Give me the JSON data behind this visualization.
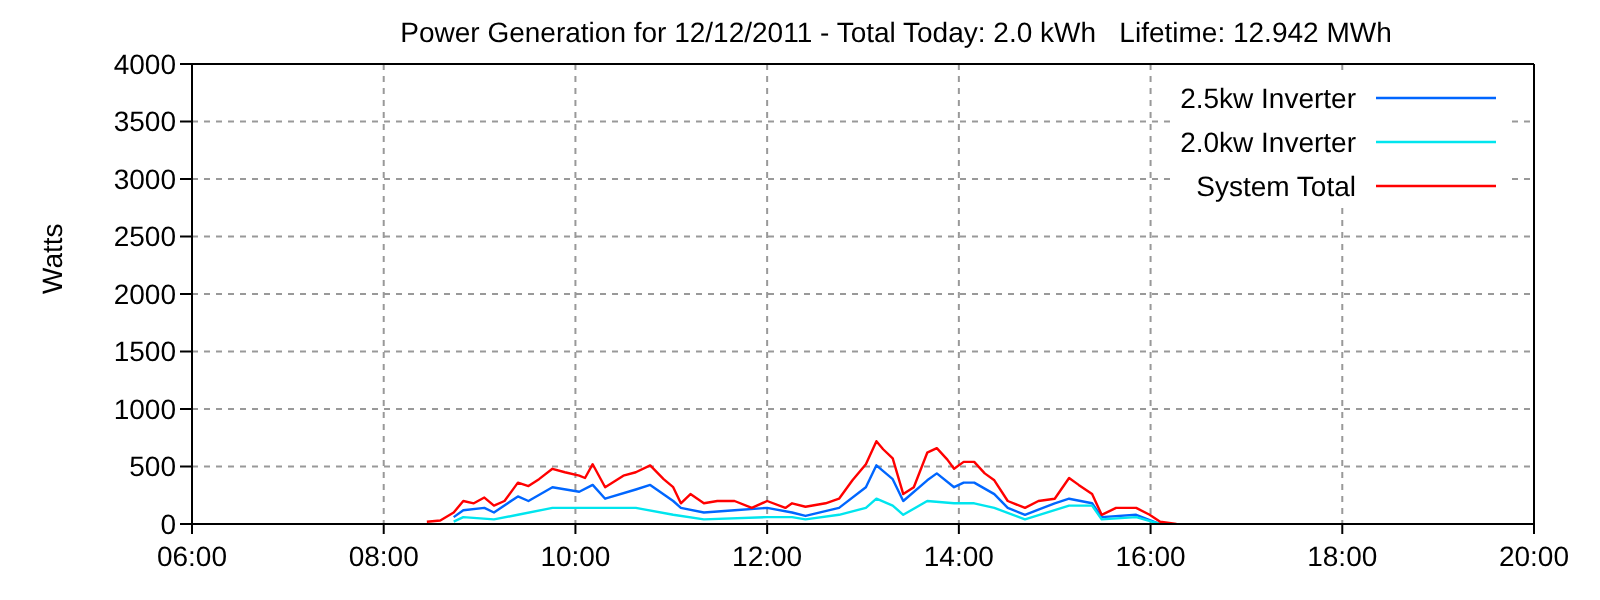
{
  "chart_data": {
    "type": "line",
    "title": "Power Generation for 12/12/2011 - Total Today: 2.0 kWh   Lifetime: 12.942 MWh",
    "ylabel": "Watts",
    "xlim": [
      6,
      20
    ],
    "xticks": [
      {
        "value": 6,
        "label": "06:00"
      },
      {
        "value": 8,
        "label": "08:00"
      },
      {
        "value": 10,
        "label": "10:00"
      },
      {
        "value": 12,
        "label": "12:00"
      },
      {
        "value": 14,
        "label": "14:00"
      },
      {
        "value": 16,
        "label": "16:00"
      },
      {
        "value": 18,
        "label": "18:00"
      },
      {
        "value": 20,
        "label": "20:00"
      }
    ],
    "ylim": [
      0,
      4000
    ],
    "yticks": [
      0,
      500,
      1000,
      1500,
      2000,
      2500,
      3000,
      3500,
      4000
    ],
    "grid": true,
    "legend": "top right",
    "marker": "none",
    "line_style": "solid",
    "series": [
      {
        "name": "2.5kw Inverter",
        "color": "#0066ff",
        "x": [
          8.73,
          8.83,
          9.05,
          9.15,
          9.4,
          9.51,
          9.76,
          10.04,
          10.18,
          10.31,
          10.63,
          10.78,
          11.02,
          11.1,
          11.34,
          11.66,
          12.0,
          12.26,
          12.4,
          12.75,
          13.03,
          13.14,
          13.31,
          13.42,
          13.67,
          13.77,
          13.95,
          14.05,
          14.16,
          14.37,
          14.51,
          14.69,
          15.0,
          15.15,
          15.39,
          15.49,
          15.85,
          16.1
        ],
        "values": [
          60,
          120,
          140,
          100,
          240,
          200,
          320,
          280,
          340,
          220,
          300,
          340,
          200,
          140,
          100,
          120,
          140,
          100,
          70,
          140,
          320,
          510,
          390,
          200,
          380,
          440,
          320,
          360,
          360,
          260,
          140,
          80,
          180,
          220,
          180,
          60,
          80,
          0
        ]
      },
      {
        "name": "2.0kw Inverter",
        "color": "#00e5ee",
        "x": [
          8.73,
          8.83,
          9.15,
          9.4,
          9.76,
          10.18,
          10.63,
          11.02,
          11.34,
          12.0,
          12.26,
          12.4,
          12.75,
          13.03,
          13.14,
          13.31,
          13.42,
          13.67,
          13.95,
          14.16,
          14.37,
          14.69,
          15.15,
          15.39,
          15.49,
          15.85,
          16.1
        ],
        "values": [
          20,
          60,
          40,
          80,
          140,
          140,
          140,
          80,
          40,
          60,
          60,
          40,
          80,
          140,
          220,
          160,
          80,
          200,
          180,
          180,
          140,
          40,
          160,
          160,
          40,
          60,
          0
        ]
      },
      {
        "name": "System Total",
        "color": "#ff0000",
        "x": [
          8.45,
          8.59,
          8.73,
          8.83,
          8.94,
          9.05,
          9.15,
          9.26,
          9.4,
          9.51,
          9.62,
          9.76,
          9.89,
          10.04,
          10.1,
          10.18,
          10.31,
          10.5,
          10.63,
          10.78,
          10.92,
          11.02,
          11.1,
          11.2,
          11.34,
          11.48,
          11.66,
          11.84,
          12.0,
          12.19,
          12.26,
          12.4,
          12.61,
          12.75,
          12.89,
          13.03,
          13.14,
          13.21,
          13.31,
          13.42,
          13.53,
          13.67,
          13.77,
          13.88,
          13.95,
          14.05,
          14.16,
          14.27,
          14.37,
          14.51,
          14.69,
          14.83,
          15.0,
          15.15,
          15.25,
          15.39,
          15.49,
          15.64,
          15.85,
          15.99,
          16.1,
          16.27
        ],
        "values": [
          20,
          30,
          100,
          200,
          180,
          230,
          160,
          200,
          360,
          330,
          390,
          480,
          450,
          420,
          400,
          520,
          320,
          420,
          450,
          510,
          390,
          320,
          180,
          260,
          180,
          200,
          200,
          140,
          200,
          140,
          180,
          150,
          180,
          220,
          380,
          520,
          720,
          650,
          570,
          260,
          320,
          620,
          660,
          560,
          480,
          540,
          540,
          440,
          380,
          200,
          140,
          200,
          220,
          400,
          340,
          260,
          80,
          140,
          140,
          80,
          20,
          0
        ]
      }
    ]
  }
}
